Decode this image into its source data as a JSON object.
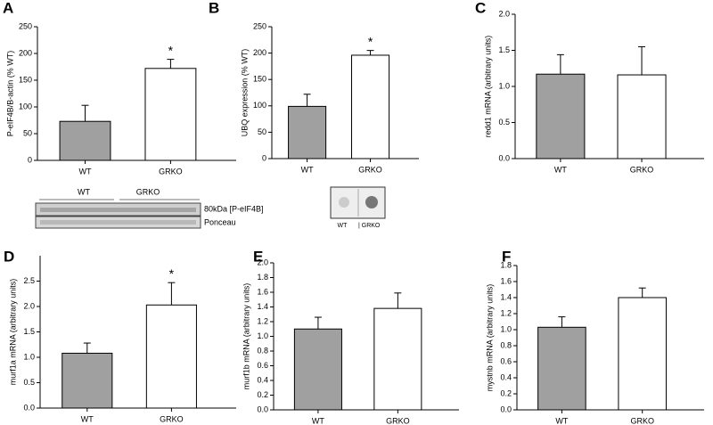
{
  "chart_data": [
    {
      "type": "bar",
      "panel": "A",
      "ylabel": "P-eIF4B/B-actin (% WT)",
      "categories": [
        "WT",
        "GRKO"
      ],
      "values": [
        73,
        172
      ],
      "errors": [
        30,
        17
      ],
      "colors": [
        "#a0a0a0",
        "#ffffff"
      ],
      "significance": [
        null,
        "*"
      ],
      "ylim": [
        0,
        250
      ],
      "yticks": [
        0,
        50,
        100,
        150,
        200,
        250
      ],
      "inset": {
        "labels": [
          "WT",
          "GRKO",
          "80kDa [P-eIF4B]",
          "Ponceau"
        ]
      }
    },
    {
      "type": "bar",
      "panel": "B",
      "ylabel": "UBQ expression (% WT)",
      "categories": [
        "WT",
        "GRKO"
      ],
      "values": [
        99,
        196
      ],
      "errors": [
        23,
        9
      ],
      "colors": [
        "#a0a0a0",
        "#ffffff"
      ],
      "significance": [
        null,
        "*"
      ],
      "ylim": [
        0,
        250
      ],
      "yticks": [
        0,
        50,
        100,
        150,
        200,
        250
      ],
      "inset": {
        "labels": [
          "WT",
          "| GRKO"
        ]
      }
    },
    {
      "type": "bar",
      "panel": "C",
      "ylabel": "redd1 mRNA (arbitrary units)",
      "categories": [
        "WT",
        "GRKO"
      ],
      "values": [
        1.17,
        1.16
      ],
      "errors": [
        0.27,
        0.39
      ],
      "colors": [
        "#a0a0a0",
        "#ffffff"
      ],
      "ylim": [
        0,
        2.0
      ],
      "yticks": [
        {
          "value": 0,
          "label": "0.0"
        },
        {
          "value": 0.5,
          "label": "0.5"
        },
        {
          "value": 1,
          "label": "1.0"
        },
        {
          "value": 1.5,
          "label": "1.5"
        },
        {
          "value": 2,
          "label": "2.0"
        }
      ]
    },
    {
      "type": "bar",
      "panel": "D",
      "ylabel": "murf1a mRNA (arbitrary units)",
      "categories": [
        "WT",
        "GRKO"
      ],
      "values": [
        1.08,
        2.03
      ],
      "errors": [
        0.2,
        0.44
      ],
      "colors": [
        "#a0a0a0",
        "#ffffff"
      ],
      "significance": [
        null,
        "*"
      ],
      "ylim": [
        0,
        3.0
      ],
      "yticks": [
        {
          "value": 0,
          "label": "0.0"
        },
        {
          "value": 0.5,
          "label": "0.5"
        },
        {
          "value": 1,
          "label": "1.0"
        },
        {
          "value": 1.5,
          "label": "1.5"
        },
        {
          "value": 2,
          "label": "2.0"
        },
        {
          "value": 2.5,
          "label": "2.5"
        }
      ]
    },
    {
      "type": "bar",
      "panel": "E",
      "ylabel": "murf1b mRNA (arbitrary units)",
      "categories": [
        "WT",
        "GRKO"
      ],
      "values": [
        1.1,
        1.38
      ],
      "errors": [
        0.16,
        0.21
      ],
      "colors": [
        "#a0a0a0",
        "#ffffff"
      ],
      "ylim": [
        0,
        2.0
      ],
      "yticks": [
        {
          "value": 0,
          "label": "0.0"
        },
        {
          "value": 0.2,
          "label": "0.2"
        },
        {
          "value": 0.4,
          "label": "0.4"
        },
        {
          "value": 0.6,
          "label": "0.6"
        },
        {
          "value": 0.8,
          "label": "0.8"
        },
        {
          "value": 1,
          "label": "1.0"
        },
        {
          "value": 1.2,
          "label": "1.2"
        },
        {
          "value": 1.4,
          "label": "1.4"
        },
        {
          "value": 1.6,
          "label": "1.6"
        },
        {
          "value": 1.8,
          "label": "1.8"
        },
        {
          "value": 2,
          "label": "2.0"
        }
      ]
    },
    {
      "type": "bar",
      "panel": "F",
      "ylabel": "mystnb mRNA (arbitrary units)",
      "categories": [
        "WT",
        "GRKO"
      ],
      "values": [
        1.03,
        1.4
      ],
      "errors": [
        0.13,
        0.12
      ],
      "colors": [
        "#a0a0a0",
        "#ffffff"
      ],
      "ylim": [
        0,
        1.8
      ],
      "yticks": [
        {
          "value": 0,
          "label": "0.0"
        },
        {
          "value": 0.2,
          "label": "0.2"
        },
        {
          "value": 0.4,
          "label": "0.4"
        },
        {
          "value": 0.6,
          "label": "0.6"
        },
        {
          "value": 0.8,
          "label": "0.8"
        },
        {
          "value": 1,
          "label": "1.0"
        },
        {
          "value": 1.2,
          "label": "1.2"
        },
        {
          "value": 1.4,
          "label": "1.4"
        },
        {
          "value": 1.6,
          "label": "1.6"
        },
        {
          "value": 1.8,
          "label": "1.8"
        }
      ]
    }
  ]
}
